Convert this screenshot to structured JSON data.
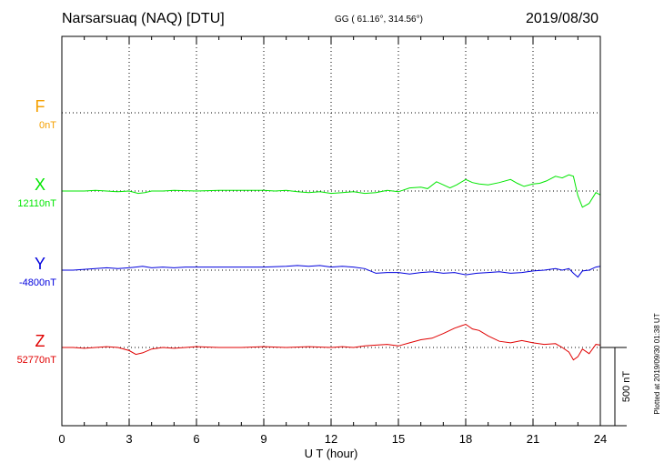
{
  "header": {
    "station": "Narsarsuaq (NAQ)  [DTU]",
    "coords": "GG ( 61.16°, 314.56°)",
    "date": "2019/08/30"
  },
  "footer": {
    "plotted": "Plotted at 2019/09/30 01:38 UT"
  },
  "colors": {
    "F": "#f5a000",
    "X": "#00e600",
    "Y": "#0000dd",
    "Z": "#e00000",
    "grid": "#000000"
  },
  "chart_data": {
    "type": "line",
    "xlabel": "U T (hour)",
    "xlim": [
      0,
      24
    ],
    "x_ticks": [
      0,
      3,
      6,
      9,
      12,
      15,
      18,
      21,
      24
    ],
    "scale_label": "500 nT",
    "scale_nT": 500,
    "grid": true,
    "series": [
      {
        "name": "F",
        "baseline_label": "0nT",
        "color": "#f5a000",
        "x": [],
        "y": []
      },
      {
        "name": "X",
        "baseline_label": "12110nT",
        "color": "#00e600",
        "x": [
          0,
          0.5,
          1,
          1.5,
          2,
          2.5,
          3,
          3.4,
          3.7,
          4,
          4.5,
          5,
          6,
          7,
          8,
          9,
          9.5,
          10,
          10.5,
          11,
          11.5,
          12,
          12.5,
          13,
          13.5,
          14,
          14.5,
          15,
          15.5,
          16,
          16.3,
          16.7,
          17,
          17.3,
          17.6,
          18,
          18.3,
          18.6,
          19,
          19.5,
          20,
          20.3,
          20.6,
          21,
          21.3,
          21.6,
          22,
          22.3,
          22.6,
          22.8,
          23,
          23.2,
          23.5,
          23.8,
          24
        ],
        "y": [
          12110,
          12110,
          12110,
          12115,
          12110,
          12105,
          12110,
          12095,
          12100,
          12110,
          12110,
          12115,
          12110,
          12115,
          12115,
          12115,
          12110,
          12115,
          12105,
          12100,
          12105,
          12095,
          12100,
          12105,
          12095,
          12100,
          12115,
          12105,
          12130,
          12135,
          12125,
          12170,
          12150,
          12130,
          12150,
          12185,
          12165,
          12155,
          12150,
          12165,
          12185,
          12160,
          12140,
          12155,
          12160,
          12175,
          12205,
          12195,
          12215,
          12205,
          12080,
          12005,
          12030,
          12100,
          12085
        ]
      },
      {
        "name": "Y",
        "baseline_label": "-4800nT",
        "color": "#0000dd",
        "x": [
          0,
          0.5,
          1,
          1.5,
          2,
          2.5,
          3,
          3.3,
          3.6,
          4,
          4.5,
          5,
          5.5,
          6,
          7,
          8,
          9,
          10,
          10.5,
          11,
          11.5,
          12,
          12.5,
          13,
          13.5,
          14,
          14.5,
          15,
          15.5,
          16,
          16.5,
          17,
          17.5,
          18,
          18.5,
          19,
          19.5,
          20,
          20.5,
          21,
          21.5,
          22,
          22.3,
          22.6,
          22.8,
          23,
          23.2,
          23.5,
          23.8,
          24
        ],
        "y": [
          -4800,
          -4800,
          -4795,
          -4790,
          -4785,
          -4790,
          -4785,
          -4780,
          -4775,
          -4785,
          -4780,
          -4785,
          -4780,
          -4780,
          -4780,
          -4780,
          -4780,
          -4775,
          -4770,
          -4775,
          -4770,
          -4780,
          -4775,
          -4780,
          -4790,
          -4820,
          -4815,
          -4815,
          -4825,
          -4815,
          -4810,
          -4820,
          -4815,
          -4830,
          -4820,
          -4815,
          -4810,
          -4820,
          -4815,
          -4805,
          -4800,
          -4790,
          -4800,
          -4790,
          -4820,
          -4845,
          -4805,
          -4800,
          -4780,
          -4775
        ]
      },
      {
        "name": "Z",
        "baseline_label": "52770nT",
        "color": "#e00000",
        "x": [
          0,
          0.5,
          1,
          1.5,
          2,
          2.5,
          3,
          3.3,
          3.6,
          4,
          4.5,
          5,
          5.5,
          6,
          7,
          8,
          9,
          10,
          11,
          12,
          12.5,
          13,
          13.5,
          14,
          14.5,
          15,
          15.5,
          16,
          16.5,
          17,
          17.5,
          18,
          18.3,
          18.6,
          19,
          19.5,
          20,
          20.5,
          21,
          21.5,
          22,
          22.3,
          22.6,
          22.8,
          23,
          23.2,
          23.5,
          23.8,
          24
        ],
        "y": [
          52770,
          52770,
          52765,
          52770,
          52775,
          52770,
          52750,
          52725,
          52735,
          52760,
          52770,
          52765,
          52770,
          52775,
          52770,
          52770,
          52775,
          52770,
          52775,
          52770,
          52775,
          52770,
          52780,
          52785,
          52790,
          52780,
          52800,
          52820,
          52830,
          52860,
          52895,
          52920,
          52890,
          52880,
          52845,
          52810,
          52800,
          52815,
          52800,
          52790,
          52795,
          52770,
          52740,
          52690,
          52710,
          52760,
          52730,
          52790,
          52785
        ]
      }
    ]
  }
}
